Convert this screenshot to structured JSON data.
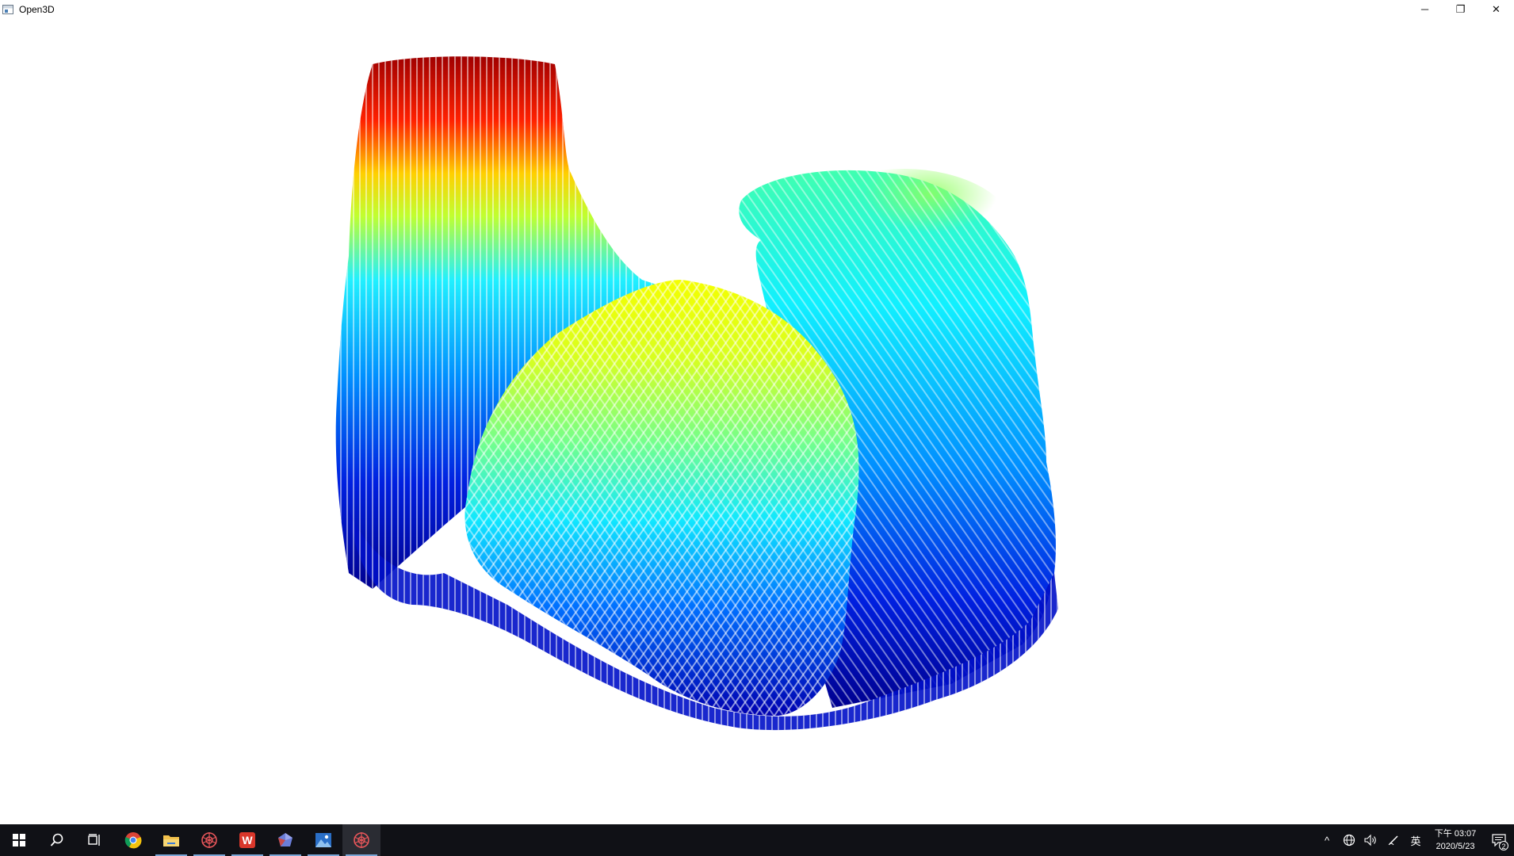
{
  "window": {
    "title": "Open3D",
    "controls": {
      "minimize_glyph": "─",
      "restore_glyph": "❐",
      "close_glyph": "✕"
    }
  },
  "viewport": {
    "background": "#ffffff",
    "content": "point-cloud",
    "colormap": "jet",
    "colormap_stops": [
      "#00008f",
      "#0000ff",
      "#00ffff",
      "#ffff00",
      "#ff0000",
      "#800000"
    ]
  },
  "taskbar": {
    "background": "#101116",
    "items": [
      {
        "name": "start-button",
        "icon": "windows-logo-icon",
        "running": false
      },
      {
        "name": "search-button",
        "icon": "search-icon",
        "running": false
      },
      {
        "name": "task-view-button",
        "icon": "task-view-icon",
        "running": false
      },
      {
        "name": "chrome-button",
        "icon": "chrome-icon",
        "running": false
      },
      {
        "name": "file-explorer-button",
        "icon": "folder-icon",
        "running": true
      },
      {
        "name": "app-web-button",
        "icon": "web-icon",
        "running": true
      },
      {
        "name": "wps-office-button",
        "icon": "wps-w-icon",
        "running": true
      },
      {
        "name": "app-gem-button",
        "icon": "gem-icon",
        "running": true
      },
      {
        "name": "photos-button",
        "icon": "photos-icon",
        "running": true
      },
      {
        "name": "open3d-taskbar-button",
        "icon": "web-icon",
        "running": true,
        "active": true
      }
    ],
    "tray": {
      "chevron_glyph": "^",
      "ime_label": "英",
      "clock": {
        "time": "下午 03:07",
        "date": "2020/5/23"
      },
      "notification_count": "2"
    }
  }
}
